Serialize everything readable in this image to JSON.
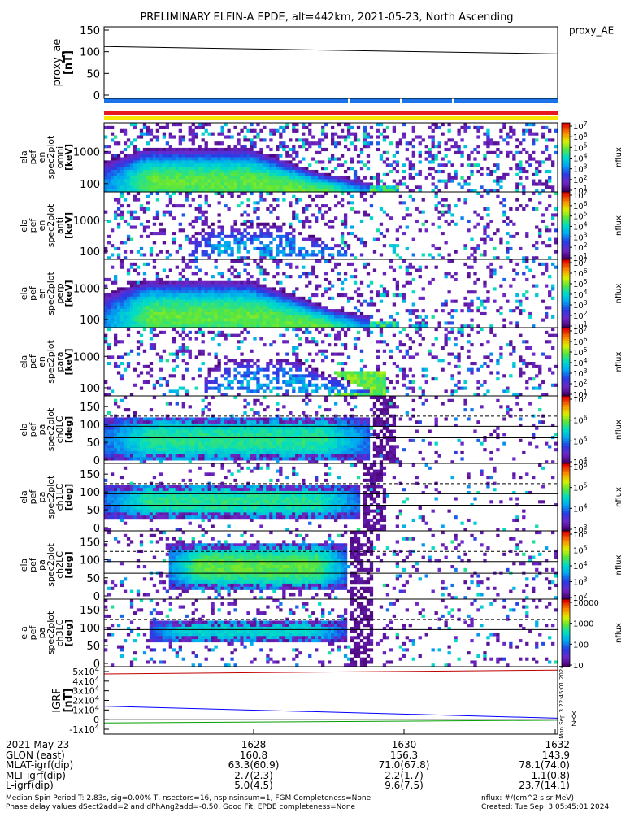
{
  "title": "PRELIMINARY ELFIN-A EPDE, alt=442km, 2021-05-23, North Ascending",
  "colors": {
    "bar_blue": "#1a73e8",
    "bar_red": "#e8191e",
    "bar_yellow": "#f6e600",
    "axis": "#000000"
  },
  "chart_data": [
    {
      "type": "line",
      "panel": "proxy_ae",
      "ylabel": [
        "proxy_ae",
        "[nT]"
      ],
      "yticks": [
        "150",
        "100",
        "50",
        "0"
      ],
      "ylim": [
        0,
        150
      ],
      "legend": "proxy_AE",
      "series": [
        {
          "name": "proxy_AE",
          "x": [
            0,
            1
          ],
          "values": [
            112,
            95
          ]
        }
      ]
    },
    {
      "type": "heatmap",
      "panel": "pef_en_spec2plot_omni",
      "ylabel": [
        "ela",
        "pef",
        "en",
        "spec2plot",
        "omni",
        "[keV]"
      ],
      "yticks": [
        "1000",
        "100"
      ],
      "cbar_label": "nflux",
      "cbar_ticks": [
        "10^7",
        "10^6",
        "10^5",
        "10^4",
        "10^3",
        "10^2",
        "10^1"
      ]
    },
    {
      "type": "heatmap",
      "panel": "pef_en_spec2plot_anti",
      "ylabel": [
        "ela",
        "pef",
        "en",
        "spec2plot",
        "anti",
        "[keV]"
      ],
      "yticks": [
        "1000",
        "100"
      ],
      "cbar_label": "nflux",
      "cbar_ticks": [
        "10^7",
        "10^6",
        "10^5",
        "10^4",
        "10^3",
        "10^2",
        "10^1"
      ]
    },
    {
      "type": "heatmap",
      "panel": "pef_en_spec2plot_perp",
      "ylabel": [
        "ela",
        "pef",
        "en",
        "spec2plot",
        "perp",
        "[keV]"
      ],
      "yticks": [
        "1000",
        "100"
      ],
      "cbar_label": "nflux",
      "cbar_ticks": [
        "10^7",
        "10^6",
        "10^5",
        "10^4",
        "10^3",
        "10^2",
        "10^1"
      ]
    },
    {
      "type": "heatmap",
      "panel": "pef_en_spec2plot_para",
      "ylabel": [
        "ela",
        "pef",
        "en",
        "spec2plot",
        "para",
        "[keV]"
      ],
      "yticks": [
        "1000",
        "100"
      ],
      "cbar_label": "nflux",
      "cbar_ticks": [
        "10^7",
        "10^6",
        "10^5",
        "10^4",
        "10^3",
        "10^2",
        "10^1"
      ]
    },
    {
      "type": "heatmap",
      "panel": "pef_pa_spec2plot_ch0LC",
      "ylabel": [
        "ela",
        "pef",
        "pa",
        "spec2plot",
        "ch0LC",
        "[deg]"
      ],
      "yticks": [
        "150",
        "100",
        "50",
        "0"
      ],
      "cbar_label": "nflux",
      "cbar_ticks": [
        "10^7",
        "10^6",
        "10^5",
        "10^4"
      ]
    },
    {
      "type": "heatmap",
      "panel": "pef_pa_spec2plot_ch1LC",
      "ylabel": [
        "ela",
        "pef",
        "pa",
        "spec2plot",
        "ch1LC",
        "[deg]"
      ],
      "yticks": [
        "150",
        "100",
        "50",
        "0"
      ],
      "cbar_label": "nflux",
      "cbar_ticks": [
        "10^6",
        "10^5",
        "10^4",
        "10^3"
      ]
    },
    {
      "type": "heatmap",
      "panel": "pef_pa_spec2plot_ch2LC",
      "ylabel": [
        "ela",
        "pef",
        "pa",
        "spec2plot",
        "ch2LC",
        "[deg]"
      ],
      "yticks": [
        "150",
        "100",
        "50",
        "0"
      ],
      "cbar_label": "nflux",
      "cbar_ticks": [
        "10^6",
        "10^5",
        "10^4",
        "10^3",
        "10^2"
      ]
    },
    {
      "type": "heatmap",
      "panel": "pef_pa_spec2plot_ch3LC",
      "ylabel": [
        "ela",
        "pef",
        "pa",
        "spec2plot",
        "ch3LC",
        "[deg]"
      ],
      "yticks": [
        "150",
        "100",
        "50",
        "0"
      ],
      "cbar_label": "nflux",
      "cbar_ticks": [
        "10000",
        "1000",
        "100",
        "10"
      ]
    },
    {
      "type": "line",
      "panel": "IGRF",
      "ylabel": [
        "IGRF",
        "[nT]"
      ],
      "yticks": [
        "5x10^4",
        "4x10^4",
        "3x10^4",
        "2x10^4",
        "1x10^4",
        "0",
        "-1x10^4"
      ],
      "legend": [
        "X",
        "Y",
        "Z"
      ],
      "side_note": "Mon Sep 3 22:45:01 2024",
      "series": [
        {
          "name": "X",
          "color": "#0000ff",
          "values": [
            14000,
            1500
          ]
        },
        {
          "name": "Y",
          "color": "#00a000",
          "values": [
            -3500,
            -600
          ]
        },
        {
          "name": "Z",
          "color": "#c00000",
          "values": [
            47500,
            51500
          ]
        }
      ]
    }
  ],
  "x_axis": {
    "tick_labels": [
      "1628",
      "1630",
      "1632"
    ],
    "rows": [
      {
        "label": "2021 May 23",
        "values": [
          "",
          "",
          ""
        ]
      },
      {
        "label": "GLON (east)",
        "values": [
          "160.8",
          "156.3",
          "143.9"
        ]
      },
      {
        "label": "MLAT-igrf(dip)",
        "values": [
          "63.3(60.9)",
          "71.0(67.8)",
          "78.1(74.0)"
        ]
      },
      {
        "label": "MLT-igrf(dip)",
        "values": [
          "2.7(2.3)",
          "2.2(1.7)",
          "1.1(0.8)"
        ]
      },
      {
        "label": "L-igrf(dip)",
        "values": [
          "5.0(4.5)",
          "9.6(7.5)",
          "23.7(14.1)"
        ]
      }
    ]
  },
  "footer": {
    "left1": "Median Spin Period T: 2.83s, sig=0.00% T, nsectors=16, nspinsinsum=1, FGM Completeness=None",
    "left2": "Phase delay values dSect2add=2 and dPhAng2add=-0.50, Good Fit, EPDE completeness=None",
    "right1": "nflux: #/(cm^2 s sr MeV)",
    "right2": "Created: Tue Sep  3 05:45:01 2024"
  }
}
